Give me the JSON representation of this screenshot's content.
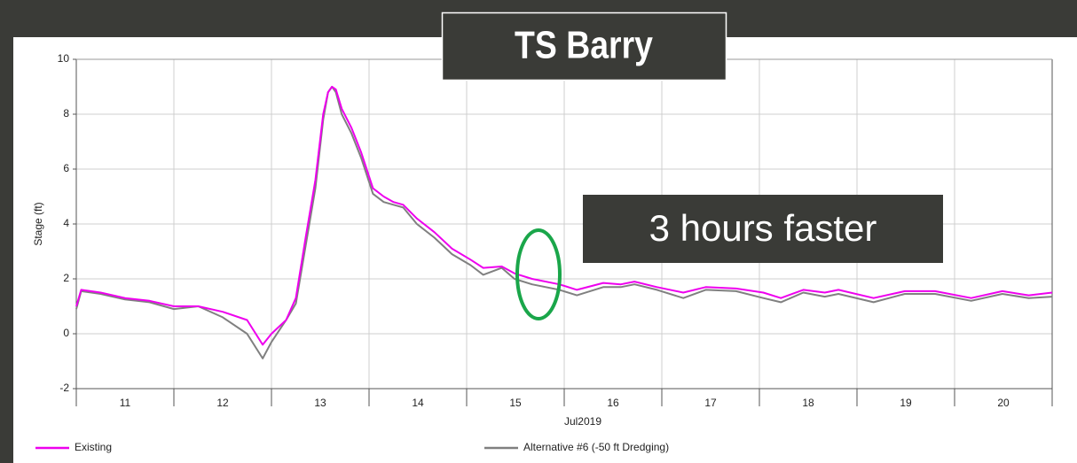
{
  "chart_data": {
    "type": "line",
    "title": "TS Barry",
    "annotation": "3 hours faster",
    "ylabel": "Stage (ft)",
    "xlabel": "Jul2019",
    "categories": [
      "11",
      "12",
      "13",
      "14",
      "15",
      "16",
      "17",
      "18",
      "19",
      "20"
    ],
    "xlim": [
      11,
      21
    ],
    "ylim": [
      -2,
      10
    ],
    "yticks": [
      -2,
      0,
      2,
      4,
      6,
      8,
      10
    ],
    "grid": true,
    "legend": "bottom",
    "x": [
      11.0,
      11.05,
      11.25,
      11.5,
      11.75,
      12.0,
      12.25,
      12.5,
      12.75,
      12.91,
      13.0,
      13.15,
      13.25,
      13.35,
      13.45,
      13.53,
      13.58,
      13.62,
      13.66,
      13.72,
      13.82,
      13.92,
      14.04,
      14.15,
      14.25,
      14.35,
      14.49,
      14.67,
      14.85,
      15.04,
      15.17,
      15.36,
      15.49,
      15.67,
      15.95,
      16.13,
      16.4,
      16.58,
      16.72,
      16.95,
      17.22,
      17.45,
      17.76,
      18.04,
      18.22,
      18.45,
      18.67,
      18.81,
      19.17,
      19.49,
      19.8,
      20.17,
      20.49,
      20.76,
      21.0
    ],
    "series": [
      {
        "name": "Existing",
        "color": "#ee00ee",
        "values": [
          1.0,
          1.6,
          1.5,
          1.3,
          1.2,
          1.0,
          1.0,
          0.8,
          0.5,
          -0.4,
          0.0,
          0.5,
          1.3,
          3.5,
          5.6,
          8.0,
          8.8,
          9.0,
          8.9,
          8.2,
          7.5,
          6.6,
          5.3,
          5.0,
          4.8,
          4.7,
          4.2,
          3.7,
          3.1,
          2.7,
          2.4,
          2.45,
          2.2,
          2.0,
          1.8,
          1.6,
          1.85,
          1.8,
          1.9,
          1.7,
          1.5,
          1.7,
          1.65,
          1.5,
          1.3,
          1.6,
          1.5,
          1.6,
          1.3,
          1.55,
          1.55,
          1.3,
          1.55,
          1.4,
          1.5
        ]
      },
      {
        "name": "Alternative #6 (-50 ft Dredging)",
        "color": "#808080",
        "values": [
          0.9,
          1.55,
          1.45,
          1.25,
          1.15,
          0.9,
          1.0,
          0.6,
          0.0,
          -0.9,
          -0.3,
          0.5,
          1.1,
          3.2,
          5.3,
          7.8,
          8.8,
          9.0,
          8.8,
          8.0,
          7.3,
          6.4,
          5.1,
          4.8,
          4.7,
          4.6,
          4.0,
          3.5,
          2.9,
          2.5,
          2.15,
          2.4,
          2.0,
          1.8,
          1.6,
          1.4,
          1.7,
          1.7,
          1.8,
          1.6,
          1.3,
          1.6,
          1.55,
          1.3,
          1.15,
          1.5,
          1.35,
          1.45,
          1.15,
          1.45,
          1.45,
          1.2,
          1.45,
          1.3,
          1.35
        ]
      }
    ]
  }
}
